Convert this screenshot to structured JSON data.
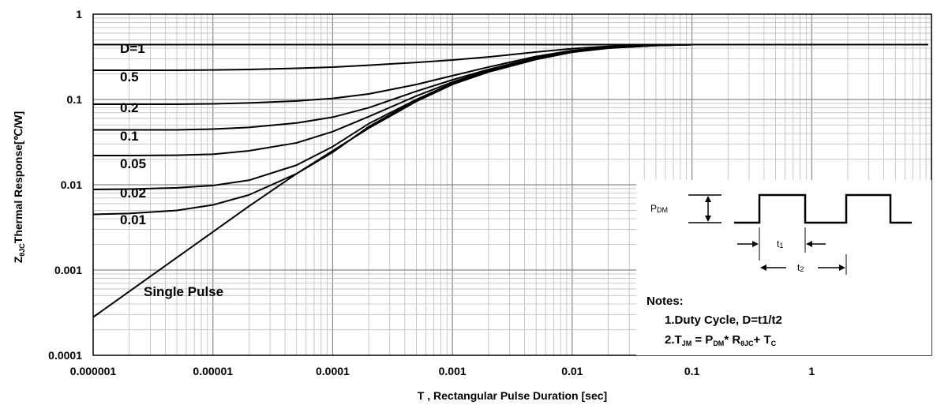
{
  "chart_data": {
    "type": "line",
    "x_scale": "log",
    "y_scale": "log",
    "xlim": [
      1e-06,
      10
    ],
    "ylim": [
      0.0001,
      1
    ],
    "grid": true,
    "xlabel": "T , Rectangular Pulse Duration [sec]",
    "ylabel_main": "Z",
    "ylabel_sub": "θJC",
    "ylabel_rest": "Thermal Response[℃/W]",
    "x_ticks": [
      {
        "value": 1e-06,
        "label": "0.000001"
      },
      {
        "value": 1e-05,
        "label": "0.00001"
      },
      {
        "value": 0.0001,
        "label": "0.0001"
      },
      {
        "value": 0.001,
        "label": "0.001"
      },
      {
        "value": 0.01,
        "label": "0.01"
      },
      {
        "value": 0.1,
        "label": "0.1"
      },
      {
        "value": 1,
        "label": "1"
      }
    ],
    "y_ticks": [
      {
        "value": 1,
        "label": "1"
      },
      {
        "value": 0.1,
        "label": "0.1"
      },
      {
        "value": 0.01,
        "label": "0.01"
      },
      {
        "value": 0.001,
        "label": "0.001"
      },
      {
        "value": 0.0001,
        "label": "0.0001"
      }
    ],
    "x": [
      1e-06,
      2e-06,
      5e-06,
      1e-05,
      2e-05,
      5e-05,
      0.0001,
      0.0002,
      0.0005,
      0.001,
      0.002,
      0.005,
      0.01,
      0.02,
      0.05,
      0.1,
      1,
      10
    ],
    "series": [
      {
        "name": "D=1",
        "values": [
          0.44,
          0.44,
          0.44,
          0.44,
          0.44,
          0.44,
          0.44,
          0.44,
          0.44,
          0.44,
          0.44,
          0.44,
          0.44,
          0.44,
          0.44,
          0.44,
          0.44,
          0.44
        ]
      },
      {
        "name": "0.5",
        "values": [
          0.22,
          0.22,
          0.22,
          0.222,
          0.225,
          0.232,
          0.24,
          0.252,
          0.272,
          0.29,
          0.315,
          0.36,
          0.395,
          0.42,
          0.436,
          0.44,
          0.44,
          0.44
        ]
      },
      {
        "name": "0.2",
        "values": [
          0.088,
          0.088,
          0.088,
          0.089,
          0.091,
          0.096,
          0.103,
          0.116,
          0.15,
          0.19,
          0.24,
          0.32,
          0.375,
          0.41,
          0.433,
          0.44,
          0.44,
          0.44
        ]
      },
      {
        "name": "0.1",
        "values": [
          0.044,
          0.044,
          0.044,
          0.045,
          0.047,
          0.053,
          0.062,
          0.08,
          0.125,
          0.17,
          0.225,
          0.31,
          0.37,
          0.405,
          0.432,
          0.44,
          0.44,
          0.44
        ]
      },
      {
        "name": "0.05",
        "values": [
          0.022,
          0.022,
          0.0222,
          0.0228,
          0.025,
          0.031,
          0.042,
          0.063,
          0.11,
          0.16,
          0.22,
          0.305,
          0.365,
          0.403,
          0.431,
          0.44,
          0.44,
          0.44
        ]
      },
      {
        "name": "0.02",
        "values": [
          0.0088,
          0.0089,
          0.0092,
          0.0098,
          0.0113,
          0.017,
          0.028,
          0.052,
          0.1,
          0.155,
          0.215,
          0.3,
          0.362,
          0.402,
          0.43,
          0.44,
          0.44,
          0.44
        ]
      },
      {
        "name": "0.01",
        "values": [
          0.0045,
          0.0046,
          0.005,
          0.0058,
          0.0076,
          0.0135,
          0.024,
          0.048,
          0.098,
          0.152,
          0.213,
          0.298,
          0.36,
          0.401,
          0.43,
          0.44,
          0.44,
          0.44
        ]
      },
      {
        "name": "Single Pulse",
        "values": [
          0.00028,
          0.00056,
          0.0014,
          0.0028,
          0.0056,
          0.0135,
          0.025,
          0.046,
          0.095,
          0.15,
          0.21,
          0.295,
          0.358,
          0.4,
          0.43,
          0.44,
          0.44,
          0.44
        ]
      }
    ],
    "inset": {
      "pdm_main": "P",
      "pdm_sub": "DM",
      "t1_main": "t",
      "t1_sub": "1",
      "t2_main": "t",
      "t2_sub": "2"
    },
    "notes": {
      "title": "Notes:",
      "line1": "1.Duty  Cycle, D=t1/t2",
      "line2_a": "2.T",
      "line2_a_sub": "JM",
      "line2_b": " = P",
      "line2_b_sub": "DM",
      "line2_c": "* R",
      "line2_c_sub": "θJC",
      "line2_d": "+ T",
      "line2_d_sub": "C"
    }
  }
}
